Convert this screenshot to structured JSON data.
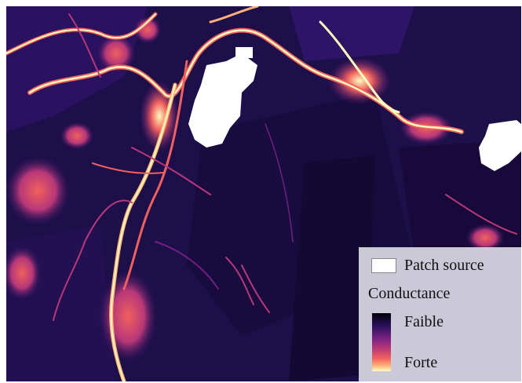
{
  "legend": {
    "patch_label": "Patch source",
    "title": "Conductance",
    "low_label": "Faible",
    "high_label": "Forte"
  },
  "colors": {
    "background": "#1d0f4a",
    "low": "#000004",
    "high": "#fcfdbf",
    "patch": "#ffffff"
  }
}
